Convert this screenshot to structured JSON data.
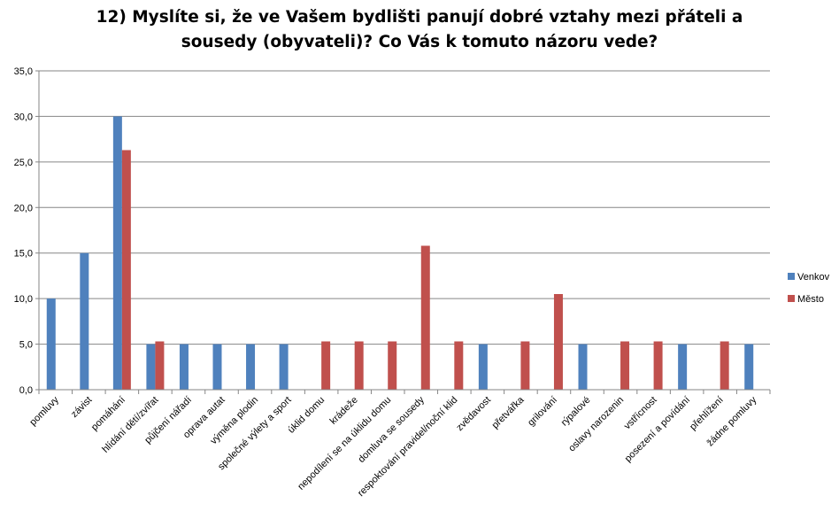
{
  "chart_data": {
    "type": "bar",
    "title_lines": [
      "12) Myslíte si, že ve Vašem bydlišti panují dobré vztahy mezi přáteli a",
      "sousedy (obyvateli)? Co Vás k tomuto názoru vede?"
    ],
    "xlabel": "",
    "ylabel": "",
    "ylim": [
      0,
      35
    ],
    "yticks": [
      "0,0",
      "5,0",
      "10,0",
      "15,0",
      "20,0",
      "25,0",
      "30,0",
      "35,0"
    ],
    "ytick_values": [
      0,
      5,
      10,
      15,
      20,
      25,
      30,
      35
    ],
    "grid": true,
    "legend_position": "right",
    "categories": [
      "pomluvy",
      "závist",
      "pomáhání",
      "hlídání dětí/zvířat",
      "půjčení nářadí",
      "oprava autat",
      "výměna plodin",
      "společné výlety a sport",
      "úklid domu",
      "krádeže",
      "nepodílení se na úklidu domu",
      "domluva se sousedy",
      "respoktování pravidel/noční klid",
      "zvědavost",
      "přetvářka",
      "grilování",
      "rýpalové",
      "oslavy narozenin",
      "vstřícnost",
      "posezení a povídání",
      "přehlížení",
      "žádne pomluvy"
    ],
    "series": [
      {
        "name": "Venkov",
        "color": "#4f81bd",
        "values": [
          10,
          15,
          30,
          5,
          5,
          5,
          5,
          5,
          0,
          0,
          0,
          0,
          0,
          5,
          0,
          0,
          5,
          0,
          0,
          5,
          0,
          5
        ]
      },
      {
        "name": "Město",
        "color": "#c0504d",
        "values": [
          0,
          0,
          26.3,
          5.3,
          0,
          0,
          0,
          0,
          5.3,
          5.3,
          5.3,
          15.8,
          5.3,
          0,
          5.3,
          10.5,
          0,
          5.3,
          5.3,
          0,
          5.3,
          0
        ]
      }
    ]
  }
}
